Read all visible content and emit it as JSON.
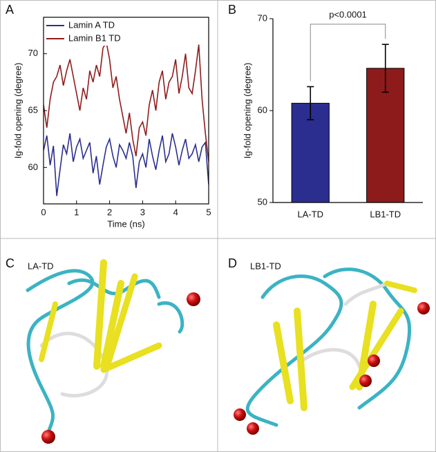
{
  "chart_data": [
    {
      "type": "line",
      "panel": "A",
      "xlabel": "Time (ns)",
      "ylabel": "Ig-fold opening (degree)",
      "x": [
        0,
        0.1,
        0.2,
        0.3,
        0.4,
        0.5,
        0.6,
        0.7,
        0.8,
        0.9,
        1,
        1.1,
        1.2,
        1.3,
        1.4,
        1.5,
        1.6,
        1.7,
        1.8,
        1.9,
        2,
        2.1,
        2.2,
        2.3,
        2.4,
        2.5,
        2.6,
        2.7,
        2.8,
        2.9,
        3,
        3.1,
        3.2,
        3.3,
        3.4,
        3.5,
        3.6,
        3.7,
        3.8,
        3.9,
        4,
        4.1,
        4.2,
        4.3,
        4.4,
        4.5,
        4.6,
        4.7,
        4.8,
        4.9,
        5
      ],
      "series": [
        {
          "name": "Lamin A TD",
          "color": "#2b2e8f",
          "values": [
            61.5,
            62.8,
            60.2,
            61.9,
            57.5,
            59.8,
            62.0,
            61.2,
            63.0,
            60.5,
            61.8,
            62.5,
            60.8,
            61.5,
            62.2,
            59.5,
            61.0,
            58.5,
            60.2,
            61.8,
            62.5,
            61.0,
            60.0,
            62.0,
            61.5,
            60.8,
            62.2,
            61.0,
            58.2,
            60.5,
            61.2,
            60.0,
            62.5,
            61.0,
            59.8,
            61.5,
            62.8,
            60.5,
            61.2,
            63.0,
            61.8,
            60.2,
            61.5,
            62.5,
            60.8,
            61.2,
            62.0,
            60.5,
            61.8,
            62.2,
            58.5
          ]
        },
        {
          "name": "Lamin B1 TD",
          "color": "#8e1b1b",
          "values": [
            65.5,
            63.5,
            66.0,
            67.5,
            68.0,
            69.0,
            67.2,
            68.5,
            69.5,
            68.0,
            66.5,
            65.0,
            67.0,
            66.0,
            68.5,
            67.5,
            69.0,
            68.0,
            70.5,
            71.0,
            69.5,
            67.0,
            68.0,
            66.0,
            64.5,
            63.0,
            64.8,
            62.5,
            61.0,
            63.5,
            64.0,
            62.8,
            65.5,
            66.8,
            65.0,
            67.5,
            68.5,
            66.0,
            67.5,
            68.0,
            69.5,
            66.5,
            68.0,
            70.0,
            67.0,
            66.5,
            68.5,
            70.8,
            66.0,
            63.0,
            60.5
          ]
        }
      ],
      "xlim": [
        0,
        5
      ],
      "xticks": [
        0,
        1,
        2,
        3,
        4,
        5
      ],
      "ylim": [
        56.8,
        73.2
      ],
      "yticks": [
        60,
        65,
        70
      ],
      "legend": "upper-left"
    },
    {
      "type": "bar",
      "panel": "B",
      "ylabel": "Ig-fold opening (degree)",
      "annotation": "p<0.0001",
      "categories": [
        "LA-TD",
        "LB1-TD"
      ],
      "values": [
        60.8,
        64.6
      ],
      "errors": [
        1.8,
        2.6
      ],
      "colors": [
        "#2b2e8f",
        "#8e1b1b"
      ],
      "ylim": [
        50,
        70
      ],
      "yticks": [
        50,
        60,
        70
      ]
    }
  ],
  "structures": [
    {
      "panel": "C",
      "label": "LA-TD"
    },
    {
      "panel": "D",
      "label": "LB1-TD"
    }
  ]
}
